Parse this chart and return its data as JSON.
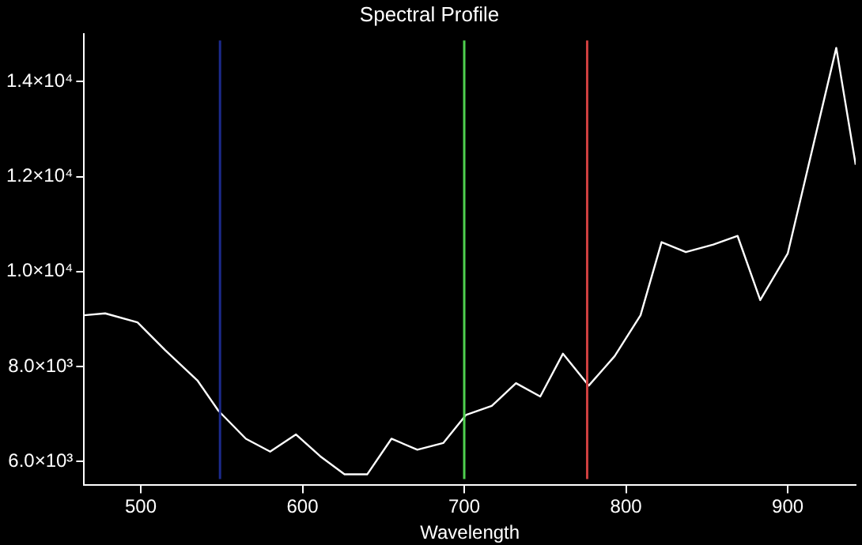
{
  "chart_data": {
    "type": "line",
    "title": "Spectral Profile",
    "xlabel": "Wavelength",
    "x": [
      465,
      478,
      498,
      515,
      535,
      548,
      565,
      580,
      596,
      611,
      626,
      640,
      655,
      671,
      687,
      701,
      717,
      732,
      747,
      761,
      777,
      793,
      809,
      822,
      837,
      854,
      869,
      883,
      900,
      930,
      942
    ],
    "series": [
      {
        "color": "#ffffff",
        "values": [
          9080,
          9120,
          8930,
          8350,
          7710,
          7070,
          6480,
          6210,
          6570,
          6110,
          5730,
          5730,
          6480,
          6250,
          6390,
          6980,
          7170,
          7650,
          7370,
          8270,
          7600,
          8220,
          9080,
          10620,
          10410,
          10570,
          10750,
          9400,
          10380,
          14710,
          12250
        ]
      }
    ],
    "xlim": [
      465,
      942
    ],
    "xticks": [
      500,
      600,
      700,
      800,
      900
    ],
    "ylim": [
      5500,
      15000
    ],
    "yticks": [
      {
        "value": 6000,
        "label": "6.0×10³"
      },
      {
        "value": 8000,
        "label": "8.0×10³"
      },
      {
        "value": 10000,
        "label": "1.0×10⁴"
      },
      {
        "value": 12000,
        "label": "1.2×10⁴"
      },
      {
        "value": 14000,
        "label": "1.4×10⁴"
      }
    ],
    "ref_lines": [
      {
        "axis": "x",
        "value": 549,
        "color": "#1c2a8c"
      },
      {
        "axis": "x",
        "value": 700,
        "color": "#4fd04f"
      },
      {
        "axis": "x",
        "value": 776,
        "color": "#d04040"
      }
    ],
    "grid": false,
    "legend": false,
    "marker": "none",
    "line_style": "solid"
  }
}
